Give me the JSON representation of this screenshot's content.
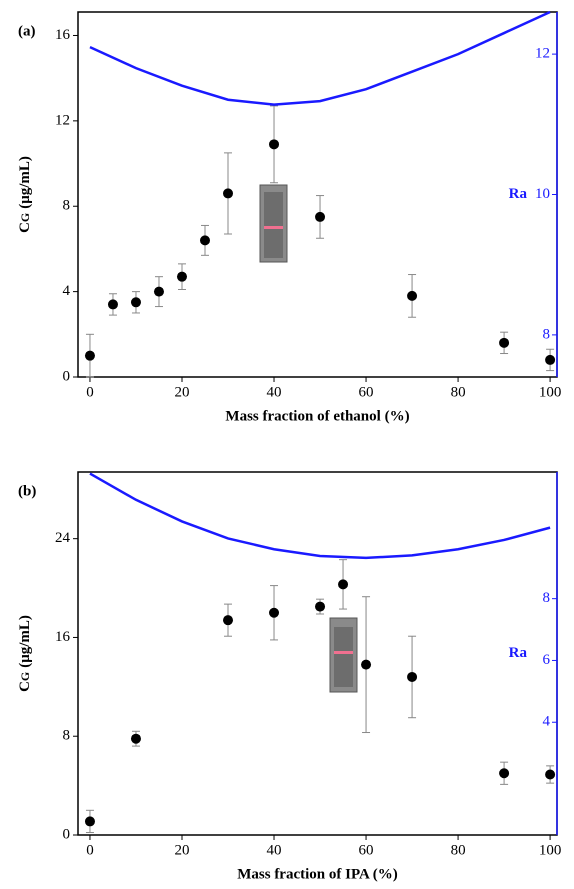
{
  "chart_data": [
    {
      "type": "scatter",
      "panel_label": "(a)",
      "xlabel": "Mass fraction of ethanol (%)",
      "ylabel": "C",
      "ylabel_subscript": "G",
      "ylabel_unit": "(μg/mL)",
      "y2label": "Ra",
      "xlim": [
        -2.6,
        101.5
      ],
      "xticks": [
        0,
        20,
        40,
        60,
        80,
        100
      ],
      "ylim": [
        0,
        17.1
      ],
      "yticks": [
        0,
        4,
        8,
        12,
        16
      ],
      "y2lim": [
        7.4,
        12.6
      ],
      "y2ticks": [
        8,
        10,
        12
      ],
      "series": [
        {
          "color": "#000000",
          "x": [
            0,
            5,
            10,
            15,
            20,
            25,
            30,
            40,
            50,
            70,
            90,
            100
          ],
          "values": [
            1.0,
            3.4,
            3.5,
            4.0,
            4.7,
            6.4,
            8.6,
            10.9,
            7.5,
            3.8,
            1.6,
            0.8
          ],
          "errors": [
            1.0,
            0.5,
            0.5,
            0.7,
            0.6,
            0.7,
            1.9,
            1.8,
            1.0,
            1.0,
            0.5,
            0.5
          ]
        },
        {
          "color": "#1a1aff",
          "axis": "y2",
          "x": [
            0,
            10,
            20,
            30,
            40,
            50,
            60,
            70,
            80,
            90,
            100
          ],
          "values": [
            12.1,
            11.8,
            11.55,
            11.35,
            11.28,
            11.33,
            11.5,
            11.75,
            12.0,
            12.3,
            12.6
          ]
        }
      ]
    },
    {
      "type": "scatter",
      "panel_label": "(b)",
      "xlabel": "Mass fraction of IPA (%)",
      "ylabel": "C",
      "ylabel_subscript": "G",
      "ylabel_unit": "(μg/mL)",
      "y2label": "Ra",
      "xlim": [
        -2.6,
        101.5
      ],
      "xticks": [
        0,
        20,
        40,
        60,
        80,
        100
      ],
      "ylim": [
        0,
        29.4
      ],
      "yticks": [
        0,
        8,
        16,
        24
      ],
      "y2lim": [
        0.35,
        12.1
      ],
      "y2ticks": [
        4,
        6,
        8
      ],
      "series": [
        {
          "color": "#000000",
          "x": [
            0,
            10,
            30,
            40,
            50,
            55,
            60,
            70,
            90,
            100
          ],
          "values": [
            1.1,
            7.8,
            17.4,
            18.0,
            18.5,
            20.3,
            13.8,
            12.8,
            5.0,
            4.9
          ],
          "errors": [
            0.9,
            0.6,
            1.3,
            2.2,
            0.6,
            2.0,
            5.5,
            3.3,
            0.9,
            0.7
          ]
        },
        {
          "color": "#1a1aff",
          "axis": "y2",
          "x": [
            0,
            10,
            20,
            30,
            40,
            50,
            60,
            70,
            80,
            90,
            100
          ],
          "values": [
            12.05,
            11.2,
            10.5,
            9.95,
            9.6,
            9.38,
            9.32,
            9.4,
            9.6,
            9.9,
            10.3
          ]
        }
      ]
    }
  ]
}
